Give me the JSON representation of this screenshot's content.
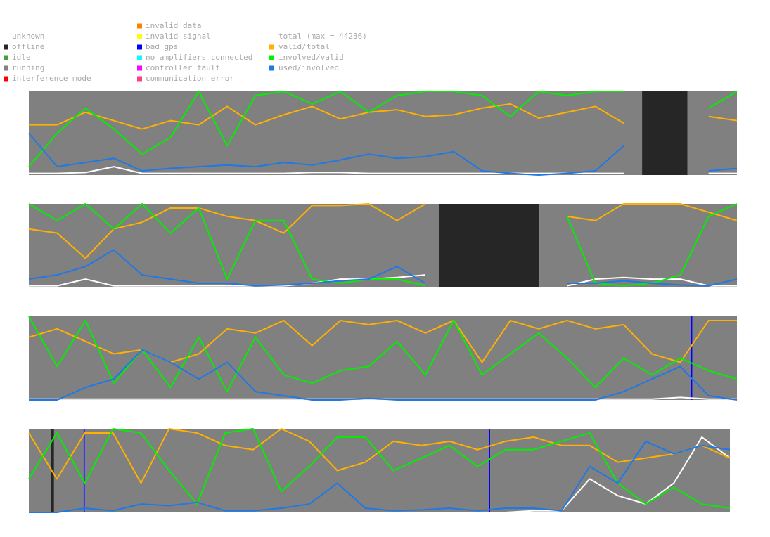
{
  "legend": {
    "status": [
      [
        {
          "name": "unknown",
          "color": "#ffffff"
        },
        {
          "name": "offline",
          "color": "#262626"
        },
        {
          "name": "idle",
          "color": "#40a040"
        },
        {
          "name": "running",
          "color": "#808080"
        },
        {
          "name": "interference mode",
          "color": "#ff0000"
        }
      ],
      [
        {
          "name": "invalid data",
          "color": "#ff7f00"
        },
        {
          "name": "invalid signal",
          "color": "#ffff00"
        },
        {
          "name": "bad gps",
          "color": "#0000ff"
        },
        {
          "name": "no amplifiers connected",
          "color": "#00ffff"
        },
        {
          "name": "controller fault",
          "color": "#ff00ff"
        },
        {
          "name": "communication error",
          "color": "#ff4080"
        }
      ]
    ],
    "lines": [
      {
        "name": "total (max = 44236)",
        "color": "#ffffff"
      },
      {
        "name": "valid/total",
        "color": "#ffb000"
      },
      {
        "name": "involved/valid",
        "color": "#00f000"
      },
      {
        "name": "used/involved",
        "color": "#1e78e6"
      }
    ]
  },
  "chart_data": [
    {
      "type": "line",
      "xlim": [
        0,
        100
      ],
      "ylim": [
        0,
        1
      ],
      "x": [
        0,
        4,
        8,
        12,
        16,
        20,
        24,
        28,
        32,
        36,
        40,
        44,
        48,
        52,
        56,
        60,
        64,
        68,
        72,
        76,
        80,
        84,
        88,
        92,
        96,
        100
      ],
      "spans": [
        {
          "start": 0,
          "end": 86.6,
          "status": "running"
        },
        {
          "start": 86.6,
          "end": 93,
          "status": "offline"
        },
        {
          "start": 93,
          "end": 100,
          "status": "running"
        }
      ],
      "series": [
        {
          "values": [
            0.02,
            0.02,
            0.03,
            0.1,
            0.02,
            0.02,
            0.02,
            0.02,
            0.02,
            0.02,
            0.03,
            0.03,
            0.02,
            0.02,
            0.02,
            0.02,
            0.02,
            0.02,
            0.02,
            0.02,
            0.02,
            0.02,
            null,
            null,
            0.02,
            0.02
          ]
        },
        {
          "values": [
            0.6,
            0.6,
            0.75,
            0.65,
            0.55,
            0.65,
            0.6,
            0.82,
            0.6,
            0.72,
            0.82,
            0.67,
            0.75,
            0.78,
            0.7,
            0.72,
            0.8,
            0.85,
            0.68,
            0.75,
            0.82,
            0.62,
            null,
            null,
            0.7,
            0.65
          ]
        },
        {
          "values": [
            0.1,
            0.5,
            0.8,
            0.55,
            0.25,
            0.45,
            1,
            0.35,
            0.95,
            1,
            0.85,
            1,
            0.75,
            0.95,
            1,
            1,
            0.95,
            0.7,
            1,
            0.95,
            1,
            1,
            null,
            null,
            0.8,
            1
          ]
        },
        {
          "values": [
            0.5,
            0.1,
            0.15,
            0.2,
            0.05,
            0.08,
            0.1,
            0.12,
            0.1,
            0.15,
            0.12,
            0.18,
            0.25,
            0.2,
            0.22,
            0.28,
            0.05,
            0.02,
            0,
            0.02,
            0.05,
            0.35,
            null,
            null,
            0.05,
            0.08
          ]
        }
      ]
    },
    {
      "type": "line",
      "xlim": [
        0,
        100
      ],
      "ylim": [
        0,
        1
      ],
      "x": [
        0,
        4,
        8,
        12,
        16,
        20,
        24,
        28,
        32,
        36,
        40,
        44,
        48,
        52,
        56,
        60,
        64,
        68,
        72,
        76,
        80,
        84,
        88,
        92,
        96,
        100
      ],
      "spans": [
        {
          "start": 0,
          "end": 57.9,
          "status": "running"
        },
        {
          "start": 57.9,
          "end": 72.1,
          "status": "offline"
        },
        {
          "start": 72.1,
          "end": 100,
          "status": "running"
        }
      ],
      "series": [
        {
          "values": [
            0.02,
            0.02,
            0.1,
            0.02,
            0.02,
            0.02,
            0.02,
            0.02,
            0.02,
            0.02,
            0.05,
            0.1,
            0.1,
            0.12,
            0.15,
            null,
            null,
            null,
            null,
            0.02,
            0.1,
            0.12,
            0.1,
            0.1,
            0.02,
            0.02
          ]
        },
        {
          "values": [
            0.7,
            0.65,
            0.35,
            0.7,
            0.78,
            0.95,
            0.95,
            0.85,
            0.8,
            0.65,
            0.98,
            0.98,
            1,
            0.8,
            1,
            null,
            null,
            null,
            null,
            0.85,
            0.8,
            1,
            1,
            1,
            0.9,
            0.8
          ]
        },
        {
          "values": [
            1,
            0.8,
            1,
            0.7,
            1,
            0.65,
            0.95,
            0.1,
            0.8,
            0.8,
            0.1,
            0.05,
            0.1,
            0.1,
            0.02,
            null,
            null,
            null,
            null,
            0.85,
            0.05,
            0.02,
            0.05,
            0.15,
            0.85,
            1
          ]
        },
        {
          "values": [
            0.1,
            0.15,
            0.25,
            0.45,
            0.15,
            0.1,
            0.05,
            0.05,
            0.02,
            0.03,
            0.05,
            0.08,
            0.1,
            0.25,
            0.05,
            null,
            null,
            null,
            null,
            0.05,
            0.05,
            0.08,
            0.05,
            0.03,
            0.02,
            0.1
          ]
        }
      ]
    },
    {
      "type": "line",
      "xlim": [
        0,
        100
      ],
      "ylim": [
        0,
        1
      ],
      "x": [
        0,
        4,
        8,
        12,
        16,
        20,
        24,
        28,
        32,
        36,
        40,
        44,
        48,
        52,
        56,
        60,
        64,
        68,
        72,
        76,
        80,
        84,
        88,
        92,
        96,
        100
      ],
      "spans": [
        {
          "start": 0,
          "end": 93.5,
          "status": "running"
        },
        {
          "start": 93.5,
          "end": 93.7,
          "status": "bad gps"
        },
        {
          "start": 93.7,
          "end": 100,
          "status": "running"
        }
      ],
      "series": [
        {
          "values": [
            0.01,
            0.01,
            0.01,
            0.01,
            0.01,
            0.01,
            0.01,
            0.01,
            0.01,
            0.01,
            0.01,
            0.01,
            0.01,
            0.01,
            0.01,
            0.01,
            0.01,
            0.01,
            0.01,
            0.01,
            0.01,
            0.01,
            0.01,
            0.03,
            0.01,
            0.01
          ]
        },
        {
          "values": [
            0.75,
            0.85,
            0.7,
            0.55,
            0.6,
            0.45,
            0.55,
            0.85,
            0.8,
            0.95,
            0.65,
            0.95,
            0.9,
            0.95,
            0.8,
            0.95,
            0.45,
            0.95,
            0.85,
            0.95,
            0.85,
            0.9,
            0.55,
            0.45,
            0.95,
            0.95
          ]
        },
        {
          "values": [
            1,
            0.4,
            0.95,
            0.2,
            0.6,
            0.15,
            0.75,
            0.1,
            0.75,
            0.3,
            0.2,
            0.35,
            0.4,
            0.7,
            0.3,
            0.95,
            0.3,
            0.55,
            0.8,
            0.5,
            0.15,
            0.5,
            0.3,
            0.5,
            0.35,
            0.25
          ]
        },
        {
          "values": [
            0,
            0,
            0.15,
            0.25,
            0.6,
            0.45,
            0.25,
            0.45,
            0.1,
            0.05,
            0,
            0,
            0.02,
            0,
            0,
            0,
            0,
            0,
            0,
            0,
            0,
            0.1,
            0.25,
            0.4,
            0.05,
            0
          ]
        }
      ]
    },
    {
      "type": "line",
      "xlim": [
        0,
        100
      ],
      "ylim": [
        0,
        1
      ],
      "x": [
        0,
        4,
        8,
        12,
        16,
        20,
        24,
        28,
        32,
        36,
        40,
        44,
        48,
        52,
        56,
        60,
        64,
        68,
        72,
        76,
        80,
        84,
        88,
        92,
        96,
        100
      ],
      "spans": [
        {
          "start": 0,
          "end": 3.1,
          "status": "running"
        },
        {
          "start": 3.1,
          "end": 3.6,
          "status": "offline"
        },
        {
          "start": 3.6,
          "end": 7.8,
          "status": "running"
        },
        {
          "start": 7.8,
          "end": 8,
          "status": "bad gps"
        },
        {
          "start": 8,
          "end": 65.6,
          "status": "running"
        },
        {
          "start": 65.6,
          "end": 65.8,
          "status": "bad gps"
        },
        {
          "start": 65.8,
          "end": 100,
          "status": "running"
        }
      ],
      "series": [
        {
          "values": [
            0,
            0,
            0,
            0,
            0,
            0,
            0,
            0,
            0,
            0,
            0,
            0,
            0,
            0,
            0,
            0,
            0,
            0,
            0.02,
            0.02,
            0.4,
            0.2,
            0.1,
            0.35,
            0.9,
            0.65
          ]
        },
        {
          "values": [
            0.95,
            0.4,
            0.95,
            0.95,
            0.35,
            1,
            0.95,
            0.8,
            0.75,
            1,
            0.85,
            0.5,
            0.6,
            0.85,
            0.8,
            0.85,
            0.75,
            0.85,
            0.9,
            0.8,
            0.8,
            0.6,
            0.65,
            0.7,
            0.8,
            0.65
          ]
        },
        {
          "values": [
            0.4,
            0.95,
            0.35,
            1,
            0.95,
            0.5,
            0.1,
            0.95,
            1,
            0.25,
            0.55,
            0.9,
            0.9,
            0.5,
            0.65,
            0.8,
            0.55,
            0.75,
            0.75,
            0.85,
            0.95,
            0.35,
            0.1,
            0.3,
            0.1,
            0.05
          ]
        },
        {
          "values": [
            0,
            0,
            0.05,
            0.02,
            0.1,
            0.08,
            0.12,
            0.02,
            0.02,
            0.05,
            0.1,
            0.35,
            0.05,
            0.02,
            0.03,
            0.05,
            0.02,
            0.05,
            0.05,
            0.02,
            0.55,
            0.35,
            0.85,
            0.7,
            0.8,
            0.75
          ]
        }
      ]
    }
  ]
}
